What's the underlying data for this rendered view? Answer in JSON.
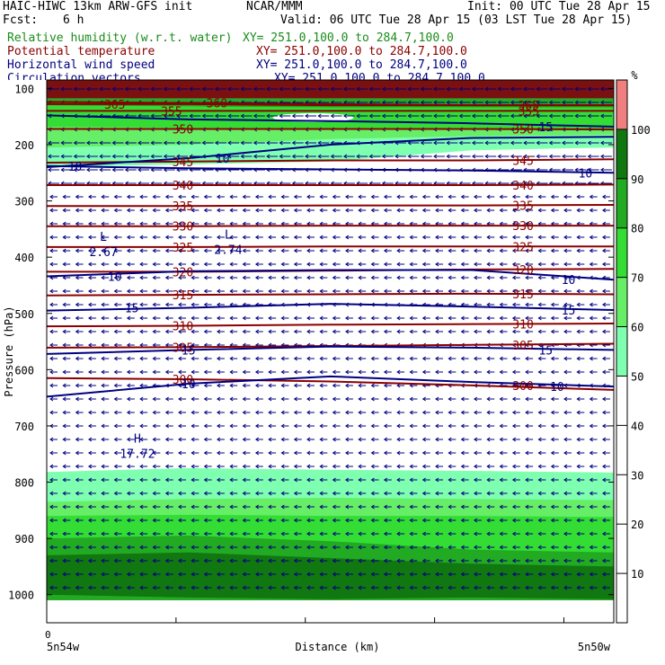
{
  "header": {
    "model": "HAIC-HIWC 13km ARW-GFS init",
    "org": "NCAR/MMM",
    "init": "Init: 00 UTC Tue 28 Apr 15",
    "fcst_label": "Fcst:",
    "fcst_value": "6 h",
    "valid": "Valid: 06 UTC Tue 28 Apr 15 (03 LST Tue 28 Apr 15)"
  },
  "fields": [
    {
      "name": "Relative humidity (w.r.t. water)",
      "xy": "XY= 251.0,100.0 to 284.7,100.0",
      "color": "#1a8c1a"
    },
    {
      "name": "Potential temperature",
      "xy": "XY= 251.0,100.0 to 284.7,100.0",
      "color": "#8b0000"
    },
    {
      "name": "Horizontal wind speed",
      "xy": "XY= 251.0,100.0 to 284.7,100.0",
      "color": "#000080"
    },
    {
      "name": "Circulation vectors",
      "xy": "XY= 251.0,100.0 to 284.7,100.0",
      "color": "#000080"
    }
  ],
  "colors": {
    "rh_fill": [
      "#7fffb0",
      "#66ee66",
      "#33dd33",
      "#22aa22",
      "#117711",
      "#f08080"
    ],
    "theta_line": "#8b0000",
    "wind_line": "#000080",
    "vector": "#000080"
  },
  "chart_data": {
    "type": "heatmap",
    "ylabel": "Pressure (hPa)",
    "xlabel": "Distance (km)",
    "x_start_tick": "0",
    "x_left_label": "5n54w",
    "x_right_label": "5n50w",
    "y_log_scale": false,
    "ylim": [
      1050,
      85
    ],
    "y_ticks": [
      100,
      200,
      300,
      400,
      500,
      600,
      700,
      800,
      900,
      1000
    ],
    "colorbar": {
      "unit": "%",
      "ticks": [
        10,
        20,
        30,
        40,
        50,
        60,
        70,
        80,
        90,
        100
      ],
      "levels": [
        {
          "from": 50,
          "to": 60,
          "color": "#7fffb0"
        },
        {
          "from": 60,
          "to": 70,
          "color": "#66ee66"
        },
        {
          "from": 70,
          "to": 80,
          "color": "#33dd33"
        },
        {
          "from": 80,
          "to": 90,
          "color": "#22aa22"
        },
        {
          "from": 90,
          "to": 100,
          "color": "#117711"
        },
        {
          "from": 100,
          "to": 110,
          "color": "#f08080"
        }
      ]
    },
    "theta_contours": [
      {
        "value": 365,
        "p": [
          128,
          128,
          130,
          130,
          130
        ]
      },
      {
        "value": 360,
        "p": [
          124,
          126,
          128,
          130,
          130
        ]
      },
      {
        "value": 355,
        "p": [
          140,
          140,
          140,
          140,
          140
        ]
      },
      {
        "value": 350,
        "p": [
          172,
          172,
          172,
          172,
          173
        ]
      },
      {
        "value": 345,
        "p": [
          232,
          230,
          228,
          228,
          226
        ]
      },
      {
        "value": 340,
        "p": [
          272,
          272,
          272,
          272,
          271
        ]
      },
      {
        "value": 335,
        "p": [
          309,
          309,
          308,
          308,
          307
        ]
      },
      {
        "value": 330,
        "p": [
          345,
          345,
          344,
          344,
          344
        ]
      },
      {
        "value": 325,
        "p": [
          382,
          382,
          381,
          381,
          381
        ]
      },
      {
        "value": 320,
        "p": [
          426,
          426,
          424,
          422,
          421
        ]
      },
      {
        "value": 315,
        "p": [
          468,
          467,
          466,
          465,
          466
        ]
      },
      {
        "value": 310,
        "p": [
          523,
          522,
          520,
          519,
          518
        ]
      },
      {
        "value": 305,
        "p": [
          561,
          560,
          558,
          556,
          554
        ]
      },
      {
        "value": 300,
        "p": [
          615,
          617,
          621,
          628,
          636
        ]
      }
    ],
    "wind_contours": [
      {
        "value": 15,
        "p": [
          148,
          155,
          158,
          162,
          168
        ]
      },
      {
        "value": 10,
        "p": [
          240,
          224,
          200,
          188,
          186
        ]
      },
      {
        "value": 10,
        "p": [
          238,
          242,
          244,
          246,
          250
        ]
      },
      {
        "value": 10,
        "p": [
          434,
          425,
          423,
          423,
          440
        ]
      },
      {
        "value": 15,
        "p": [
          495,
          490,
          483,
          488,
          494
        ]
      },
      {
        "value": 15,
        "p": [
          572,
          565,
          559,
          561,
          565
        ]
      },
      {
        "value": 10,
        "p": [
          648,
          625,
          612,
          622,
          630
        ]
      }
    ],
    "extrema": [
      {
        "type": "L",
        "value": "2.67",
        "p": 395
      },
      {
        "type": "L",
        "value": "2.74",
        "p": 391
      },
      {
        "type": "H",
        "value": "17.72",
        "p": 754
      }
    ],
    "contour_labels": [
      "365",
      "360",
      "355",
      "350",
      "345",
      "340",
      "335",
      "330",
      "325",
      "320",
      "315",
      "310",
      "305",
      "300",
      "15",
      "10",
      "10",
      "10",
      "15",
      "15",
      "10"
    ]
  }
}
